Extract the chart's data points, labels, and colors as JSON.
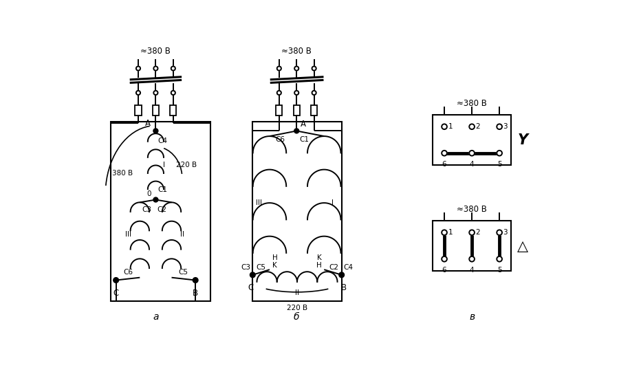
{
  "bg_color": "#ffffff",
  "line_color": "#000000",
  "title_a": "а",
  "title_b": "б",
  "title_v": "в",
  "voltage_label": "≈380 В",
  "voltage_label_220": "220 В",
  "voltage_label_380": "380 В",
  "label_A": "A",
  "label_B": "B",
  "label_C": "C",
  "label_0": "0",
  "label_I": "I",
  "label_II": "II",
  "label_III": "III",
  "label_C1": "C1",
  "label_C2": "C2",
  "label_C3": "C3",
  "label_C4": "C4",
  "label_C5": "C5",
  "label_C6": "C6",
  "label_H": "H",
  "label_K": "K",
  "star_symbol": "Y",
  "delta_symbol": "△"
}
